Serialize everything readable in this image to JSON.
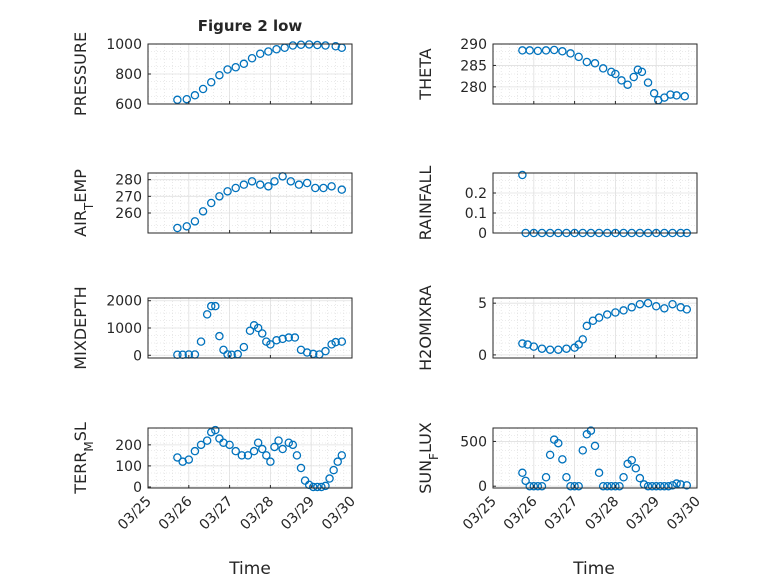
{
  "figure": {
    "title": "Figure 2 low",
    "xlabel": "Time",
    "xticklabels": [
      "03/25",
      "03/26",
      "03/27",
      "03/28",
      "03/29",
      "03/30"
    ],
    "marker_color": "#0072BD"
  },
  "chart_data": [
    {
      "type": "scatter",
      "ylabel": "PRESSURE",
      "ylim": [
        600,
        1000
      ],
      "yticks": [
        600,
        800,
        1000
      ],
      "xlim": [
        0,
        5
      ],
      "x": [
        0.72,
        0.95,
        1.15,
        1.35,
        1.55,
        1.75,
        1.95,
        2.15,
        2.35,
        2.55,
        2.75,
        2.95,
        3.15,
        3.35,
        3.55,
        3.75,
        3.95,
        4.15,
        4.35,
        4.6,
        4.75
      ],
      "y": [
        628,
        632,
        658,
        700,
        745,
        792,
        830,
        845,
        868,
        905,
        935,
        950,
        965,
        975,
        990,
        995,
        997,
        993,
        990,
        985,
        975
      ],
      "grid": true,
      "minor_grid": true
    },
    {
      "type": "scatter",
      "ylabel": "THETA",
      "ylim": [
        276,
        290
      ],
      "yticks": [
        280,
        285,
        290
      ],
      "xlim": [
        0,
        5
      ],
      "x": [
        0.72,
        0.9,
        1.1,
        1.3,
        1.5,
        1.7,
        1.9,
        2.1,
        2.3,
        2.5,
        2.7,
        2.9,
        3.0,
        3.15,
        3.3,
        3.45,
        3.55,
        3.65,
        3.8,
        3.95,
        4.05,
        4.2,
        4.35,
        4.5,
        4.7
      ],
      "y": [
        288.5,
        288.5,
        288.4,
        288.5,
        288.6,
        288.3,
        287.8,
        287.0,
        285.8,
        285.5,
        284.3,
        283.5,
        283.0,
        281.5,
        280.5,
        282.3,
        284.0,
        283.5,
        281.0,
        278.5,
        276.9,
        277.5,
        278.2,
        278.0,
        277.8
      ],
      "grid": true,
      "minor_grid": true
    },
    {
      "type": "scatter",
      "ylabel": "AIR_TEMP",
      "ylim": [
        248,
        284
      ],
      "yticks": [
        260,
        270,
        280
      ],
      "xlim": [
        0,
        5
      ],
      "x": [
        0.72,
        0.95,
        1.15,
        1.35,
        1.55,
        1.75,
        1.95,
        2.15,
        2.35,
        2.55,
        2.75,
        2.95,
        3.1,
        3.3,
        3.5,
        3.7,
        3.9,
        4.1,
        4.3,
        4.5,
        4.75
      ],
      "y": [
        251,
        252,
        255,
        261,
        266,
        270,
        273,
        275,
        277,
        279,
        277,
        276,
        279,
        282,
        279,
        277,
        278,
        275,
        275,
        276,
        274
      ],
      "grid": true,
      "minor_grid": true
    },
    {
      "type": "scatter",
      "ylabel": "RAINFALL",
      "ylim": [
        0,
        0.3
      ],
      "yticks": [
        0,
        0.1,
        0.2
      ],
      "xlim": [
        0,
        5
      ],
      "x": [
        0.72,
        0.8,
        1.0,
        1.2,
        1.4,
        1.6,
        1.8,
        2.0,
        2.2,
        2.4,
        2.6,
        2.8,
        3.0,
        3.2,
        3.4,
        3.6,
        3.8,
        4.0,
        4.2,
        4.4,
        4.6,
        4.75
      ],
      "y": [
        0.29,
        0,
        0,
        0,
        0,
        0,
        0,
        0,
        0,
        0,
        0,
        0,
        0,
        0,
        0,
        0,
        0,
        0,
        0,
        0,
        0,
        0
      ],
      "grid": true,
      "minor_grid": true
    },
    {
      "type": "scatter",
      "ylabel": "MIXDEPTH",
      "ylim": [
        -100,
        2100
      ],
      "yticks": [
        0,
        1000,
        2000
      ],
      "xlim": [
        0,
        5
      ],
      "x": [
        0.72,
        0.85,
        1.0,
        1.15,
        1.3,
        1.45,
        1.55,
        1.65,
        1.75,
        1.85,
        1.95,
        2.05,
        2.2,
        2.35,
        2.5,
        2.6,
        2.7,
        2.8,
        2.9,
        3.0,
        3.15,
        3.3,
        3.45,
        3.6,
        3.75,
        3.9,
        4.05,
        4.2,
        4.35,
        4.5,
        4.6,
        4.75
      ],
      "y": [
        20,
        20,
        30,
        30,
        500,
        1500,
        1800,
        1800,
        700,
        200,
        30,
        20,
        40,
        300,
        900,
        1100,
        1000,
        800,
        500,
        400,
        550,
        600,
        650,
        650,
        200,
        100,
        50,
        30,
        150,
        400,
        480,
        500
      ],
      "grid": true,
      "minor_grid": true
    },
    {
      "type": "scatter",
      "ylabel": "H2OMIXRA",
      "ylim": [
        -0.3,
        5.5
      ],
      "yticks": [
        0,
        5
      ],
      "xlim": [
        0,
        5
      ],
      "x": [
        0.72,
        0.85,
        1.0,
        1.2,
        1.4,
        1.6,
        1.8,
        2.0,
        2.1,
        2.2,
        2.3,
        2.45,
        2.6,
        2.8,
        3.0,
        3.2,
        3.4,
        3.6,
        3.8,
        4.0,
        4.2,
        4.4,
        4.6,
        4.75
      ],
      "y": [
        1.1,
        1.0,
        0.8,
        0.6,
        0.5,
        0.5,
        0.6,
        0.7,
        1.0,
        1.5,
        2.8,
        3.3,
        3.6,
        3.9,
        4.1,
        4.3,
        4.6,
        4.9,
        5.0,
        4.7,
        4.5,
        4.9,
        4.6,
        4.4
      ],
      "grid": true,
      "minor_grid": true
    },
    {
      "type": "scatter",
      "ylabel": "TERR_MSL",
      "ylim": [
        -5,
        280
      ],
      "yticks": [
        0,
        100,
        200
      ],
      "xlim": [
        0,
        5
      ],
      "x": [
        0.72,
        0.85,
        1.0,
        1.15,
        1.3,
        1.45,
        1.55,
        1.65,
        1.75,
        1.85,
        2.0,
        2.15,
        2.3,
        2.45,
        2.6,
        2.7,
        2.8,
        2.9,
        3.0,
        3.1,
        3.2,
        3.3,
        3.45,
        3.55,
        3.65,
        3.75,
        3.85,
        3.95,
        4.05,
        4.15,
        4.25,
        4.35,
        4.45,
        4.55,
        4.65,
        4.75
      ],
      "y": [
        140,
        120,
        130,
        170,
        200,
        220,
        260,
        270,
        230,
        210,
        200,
        170,
        150,
        150,
        170,
        210,
        180,
        150,
        120,
        190,
        220,
        180,
        210,
        200,
        150,
        90,
        30,
        10,
        0,
        0,
        0,
        5,
        40,
        80,
        120,
        150
      ],
      "grid": true,
      "minor_grid": true
    },
    {
      "type": "scatter",
      "ylabel": "SUN_FLUX",
      "ylim": [
        -20,
        650
      ],
      "yticks": [
        0,
        500
      ],
      "xlim": [
        0,
        5
      ],
      "x": [
        0.72,
        0.8,
        0.9,
        1.0,
        1.1,
        1.2,
        1.3,
        1.4,
        1.5,
        1.6,
        1.7,
        1.8,
        1.9,
        2.0,
        2.1,
        2.2,
        2.3,
        2.4,
        2.5,
        2.6,
        2.7,
        2.8,
        2.9,
        3.0,
        3.1,
        3.2,
        3.3,
        3.4,
        3.5,
        3.6,
        3.7,
        3.8,
        3.9,
        4.0,
        4.1,
        4.2,
        4.3,
        4.4,
        4.5,
        4.6,
        4.75
      ],
      "y": [
        150,
        60,
        0,
        0,
        0,
        0,
        100,
        350,
        520,
        480,
        300,
        100,
        0,
        0,
        0,
        400,
        580,
        620,
        450,
        150,
        0,
        0,
        0,
        0,
        0,
        100,
        250,
        290,
        200,
        90,
        20,
        0,
        0,
        0,
        0,
        0,
        0,
        10,
        30,
        20,
        10
      ],
      "grid": true,
      "minor_grid": true
    }
  ]
}
